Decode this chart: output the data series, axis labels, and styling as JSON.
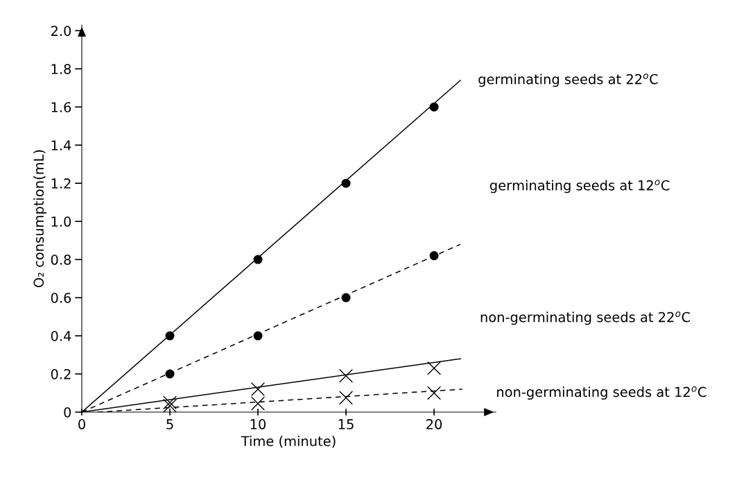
{
  "chart_data": {
    "type": "scatter",
    "xlabel": "Time (minute)",
    "ylabel": "O₂ consumption(mL)",
    "xlim": [
      0,
      23.5
    ],
    "ylim": [
      0,
      2.03
    ],
    "xticks": [
      0,
      5,
      10,
      15,
      20
    ],
    "yticks": [
      0,
      {
        "value": 0.2,
        "label": "0.2"
      },
      {
        "value": 0.4,
        "label": "0.4"
      },
      {
        "value": 0.6,
        "label": "0.6"
      },
      {
        "value": 0.8,
        "label": "0.8"
      },
      {
        "value": 1.0,
        "label": "1.0"
      },
      {
        "value": 1.2,
        "label": "1.2"
      },
      {
        "value": 1.4,
        "label": "1.4"
      },
      {
        "value": 1.6,
        "label": "1.6"
      },
      {
        "value": 1.8,
        "label": "1.8"
      },
      {
        "value": 2.0,
        "label": "2.0"
      }
    ],
    "grid": false,
    "legend": false,
    "series": [
      {
        "color": "#000000",
        "marker": "circle",
        "x": [
          5,
          10,
          15,
          20
        ],
        "values": [
          0.4,
          0.8,
          1.2,
          1.6
        ]
      },
      {
        "color": "#000000",
        "marker": "circle",
        "x": [
          5,
          10,
          15,
          20
        ],
        "values": [
          0.2,
          0.4,
          0.6,
          0.82
        ]
      },
      {
        "color": "#000000",
        "marker": "cross",
        "x": [
          5,
          10,
          15,
          20
        ],
        "values": [
          0.05,
          0.12,
          0.19,
          0.23
        ]
      },
      {
        "color": "#000000",
        "marker": "cross",
        "x": [
          5,
          10,
          15,
          20
        ],
        "values": [
          0.033,
          0.045,
          0.075,
          0.1
        ]
      },
      {
        "type": "line",
        "name": "germinating seeds at 22$^{o}$C",
        "color": "#000000",
        "line_style": "solid",
        "marker": "none",
        "x": [
          0,
          21.5
        ],
        "values": [
          0,
          1.74
        ]
      },
      {
        "type": "line",
        "name": "germinating seeds at 12$^{o}$C",
        "color": "#000000",
        "line_style": "dashed",
        "marker": "none",
        "x": [
          0,
          21.5
        ],
        "values": [
          0,
          0.88
        ]
      },
      {
        "type": "line",
        "name": "non-germinating seeds at 22$^{o}$C",
        "color": "#000000",
        "line_style": "solid",
        "marker": "none",
        "x": [
          0,
          21.5
        ],
        "values": [
          0,
          0.28
        ]
      },
      {
        "type": "line",
        "name": "non-germinating seeds at 12$^{o}$C",
        "color": "#000000",
        "line_style": "dashed",
        "marker": "none",
        "x": [
          0.9,
          21.6
        ],
        "values": [
          0,
          0.12
        ]
      }
    ]
  }
}
